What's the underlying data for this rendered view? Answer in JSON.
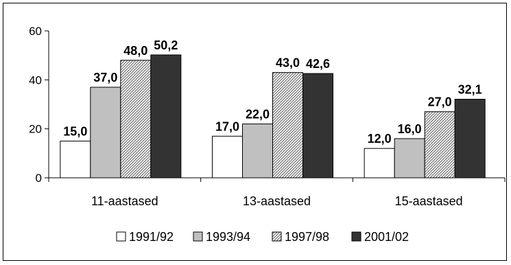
{
  "chart_data": {
    "type": "bar",
    "categories": [
      "11-aastased",
      "13-aastased",
      "15-aastased"
    ],
    "series": [
      {
        "name": "1991/92",
        "values": [
          15.0,
          17.0,
          12.0
        ],
        "labels": [
          "15,0",
          "17,0",
          "12,0"
        ],
        "fill": "white"
      },
      {
        "name": "1993/94",
        "values": [
          37.0,
          22.0,
          16.0
        ],
        "labels": [
          "37,0",
          "22,0",
          "16,0"
        ],
        "fill": "lightgray"
      },
      {
        "name": "1997/98",
        "values": [
          48.0,
          43.0,
          27.0
        ],
        "labels": [
          "48,0",
          "43,0",
          "27,0"
        ],
        "fill": "hatched"
      },
      {
        "name": "2001/02",
        "values": [
          50.2,
          42.6,
          32.1
        ],
        "labels": [
          "50,2",
          "42,6",
          "32,1"
        ],
        "fill": "darkgray"
      }
    ],
    "yticks": [
      "0",
      "20",
      "40",
      "60"
    ],
    "ylim": [
      0,
      60
    ],
    "legend_position": "bottom",
    "grid": false
  },
  "colors": {
    "white": "#ffffff",
    "lightgray": "#c0c0c0",
    "hatched": "#969696",
    "darkgray": "#333333"
  }
}
